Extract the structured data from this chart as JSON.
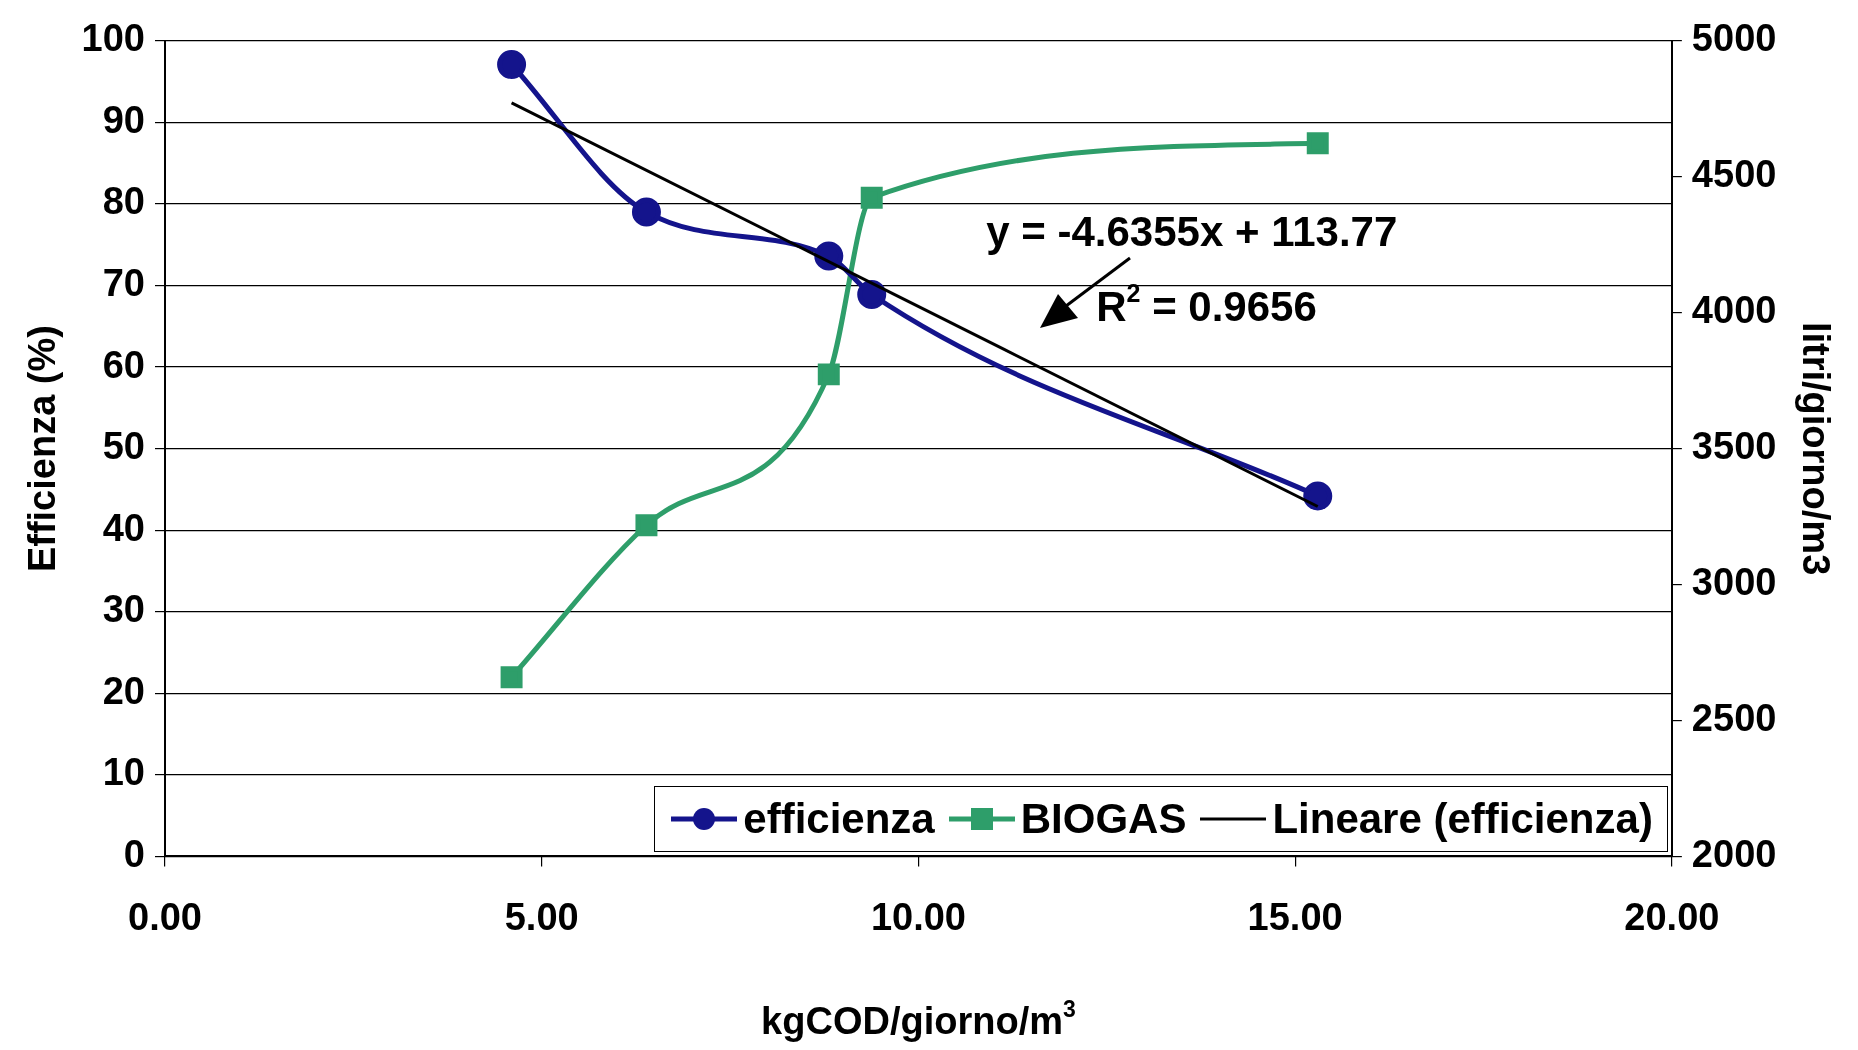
{
  "chart_data": {
    "type": "line",
    "xlabel": "kgCOD/giorno/m$^{3}$",
    "ylabel": "Efficienza (%)",
    "y2label": "litri/giorno/m3",
    "x": [
      4.6,
      6.39,
      8.81,
      9.38,
      15.3
    ],
    "series": [
      {
        "name": "efficienza",
        "color": "#14148c",
        "marker": "circle",
        "values": [
          97.1,
          79.0,
          73.6,
          68.9,
          44.2
        ]
      },
      {
        "name": "BIOGAS",
        "color": "#2e9e6a",
        "marker": "square",
        "axis": "y2",
        "values": [
          2659,
          3218,
          3773,
          4423,
          4623
        ]
      },
      {
        "name": "Lineare (efficienza)",
        "color": "#000000",
        "marker": "none",
        "x": [
          4.6,
          15.3
        ],
        "values": [
          92.4,
          42.9
        ]
      }
    ],
    "xlim": [
      0,
      20
    ],
    "xticks": [
      {
        "value": 0,
        "label": "0.00"
      },
      {
        "value": 5,
        "label": "5.00"
      },
      {
        "value": 10,
        "label": "10.00"
      },
      {
        "value": 15,
        "label": "15.00"
      },
      {
        "value": 20,
        "label": "20.00"
      }
    ],
    "ylim": [
      0,
      100
    ],
    "yticks": [
      0,
      10,
      20,
      30,
      40,
      50,
      60,
      70,
      80,
      90,
      100
    ],
    "y2lim": [
      2000,
      5000
    ],
    "y2ticks": [
      2000,
      2500,
      3000,
      3500,
      4000,
      4500,
      5000
    ],
    "grid": "y",
    "legend": "bottom right",
    "annotations": [
      "y = -4.6355x + 113.77",
      "R$^{2}$ = 0.9656"
    ]
  }
}
